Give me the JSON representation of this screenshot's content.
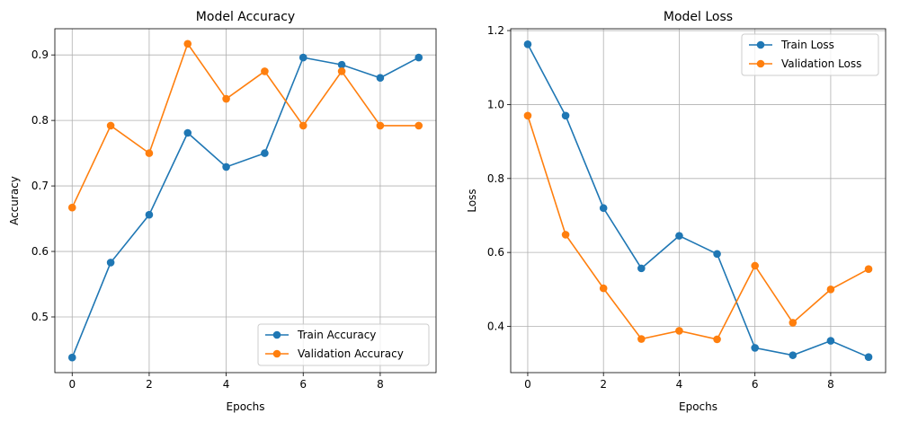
{
  "chart_data": [
    {
      "type": "line",
      "title": "Model Accuracy",
      "xlabel": "Epochs",
      "ylabel": "Accuracy",
      "x": [
        0,
        1,
        2,
        3,
        4,
        5,
        6,
        7,
        8,
        9
      ],
      "xlim": [
        -0.45,
        9.45
      ],
      "ylim": [
        0.415,
        0.94
      ],
      "xticks": [
        0,
        2,
        4,
        6,
        8
      ],
      "yticks": [
        0.5,
        0.6,
        0.7,
        0.8,
        0.9
      ],
      "xtick_labels": [
        "0",
        "2",
        "4",
        "6",
        "8"
      ],
      "ytick_labels": [
        "0.5",
        "0.6",
        "0.7",
        "0.8",
        "0.9"
      ],
      "grid": true,
      "legend_position": "lower-right",
      "series": [
        {
          "name": "Train Accuracy",
          "color": "#1f77b4",
          "values": [
            0.438,
            0.583,
            0.656,
            0.781,
            0.729,
            0.75,
            0.896,
            0.885,
            0.865,
            0.896
          ]
        },
        {
          "name": "Validation Accuracy",
          "color": "#ff7f0e",
          "values": [
            0.667,
            0.792,
            0.75,
            0.917,
            0.833,
            0.875,
            0.792,
            0.875,
            0.792,
            0.792
          ]
        }
      ]
    },
    {
      "type": "line",
      "title": "Model Loss",
      "xlabel": "Epochs",
      "ylabel": "Loss",
      "x": [
        0,
        1,
        2,
        3,
        4,
        5,
        6,
        7,
        8,
        9
      ],
      "xlim": [
        -0.45,
        9.45
      ],
      "ylim": [
        0.275,
        1.205
      ],
      "xticks": [
        0,
        2,
        4,
        6,
        8
      ],
      "yticks": [
        0.4,
        0.6,
        0.8,
        1.0,
        1.2
      ],
      "xtick_labels": [
        "0",
        "2",
        "4",
        "6",
        "8"
      ],
      "ytick_labels": [
        "0.4",
        "0.6",
        "0.8",
        "1.0",
        "1.2"
      ],
      "grid": true,
      "legend_position": "upper-right",
      "series": [
        {
          "name": "Train Loss",
          "color": "#1f77b4",
          "values": [
            1.163,
            0.97,
            0.72,
            0.557,
            0.645,
            0.596,
            0.342,
            0.322,
            0.361,
            0.317
          ]
        },
        {
          "name": "Validation Loss",
          "color": "#ff7f0e",
          "values": [
            0.97,
            0.648,
            0.503,
            0.366,
            0.388,
            0.365,
            0.564,
            0.41,
            0.5,
            0.555
          ]
        }
      ]
    }
  ]
}
